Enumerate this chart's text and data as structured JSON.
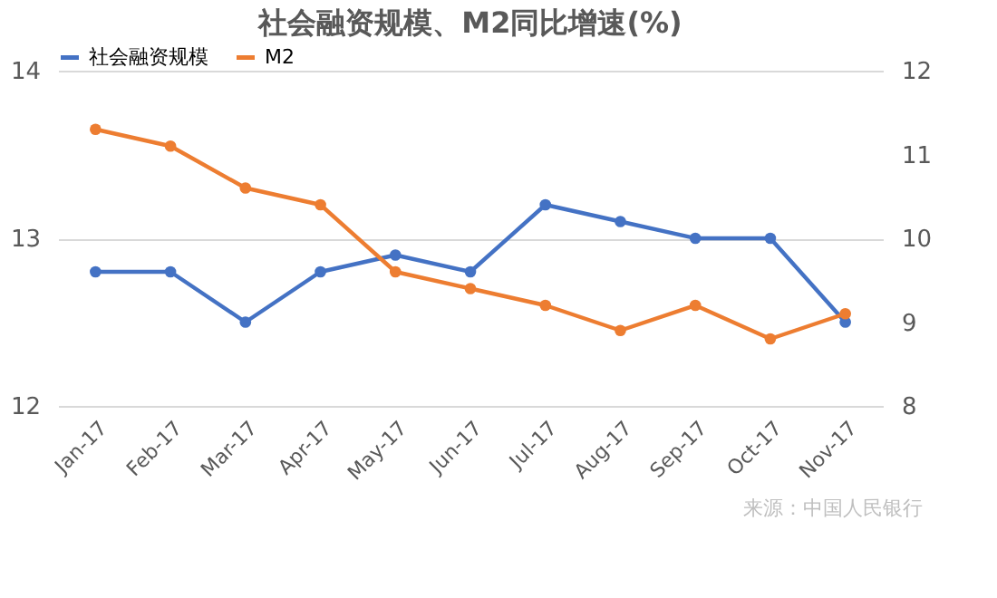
{
  "chart_data": {
    "type": "line",
    "title": "社会融资规模、M2同比增速(%)",
    "categories": [
      "Jan-17",
      "Feb-17",
      "Mar-17",
      "Apr-17",
      "May-17",
      "Jun-17",
      "Jul-17",
      "Aug-17",
      "Sep-17",
      "Oct-17",
      "Nov-17"
    ],
    "series": [
      {
        "name": "社会融资规模",
        "color": "#4472c4",
        "values": [
          12.8,
          12.8,
          12.5,
          12.8,
          12.9,
          12.8,
          13.2,
          13.1,
          13.0,
          13.0,
          12.5
        ]
      },
      {
        "name": "M2",
        "color": "#ed7d31",
        "axis": "y2",
        "values": [
          11.3,
          11.1,
          10.6,
          10.4,
          9.6,
          9.4,
          9.2,
          8.9,
          9.2,
          8.8,
          9.1
        ]
      }
    ],
    "ylim": [
      12,
      14
    ],
    "yticks": [
      12,
      13,
      14
    ],
    "y2lim": [
      8,
      12
    ],
    "y2ticks": [
      8,
      9,
      10,
      11,
      12
    ],
    "grid": "y",
    "legend": "top",
    "marker": "circle",
    "line_style": "solid",
    "annotations": [
      "来源：中国人民银行"
    ]
  }
}
